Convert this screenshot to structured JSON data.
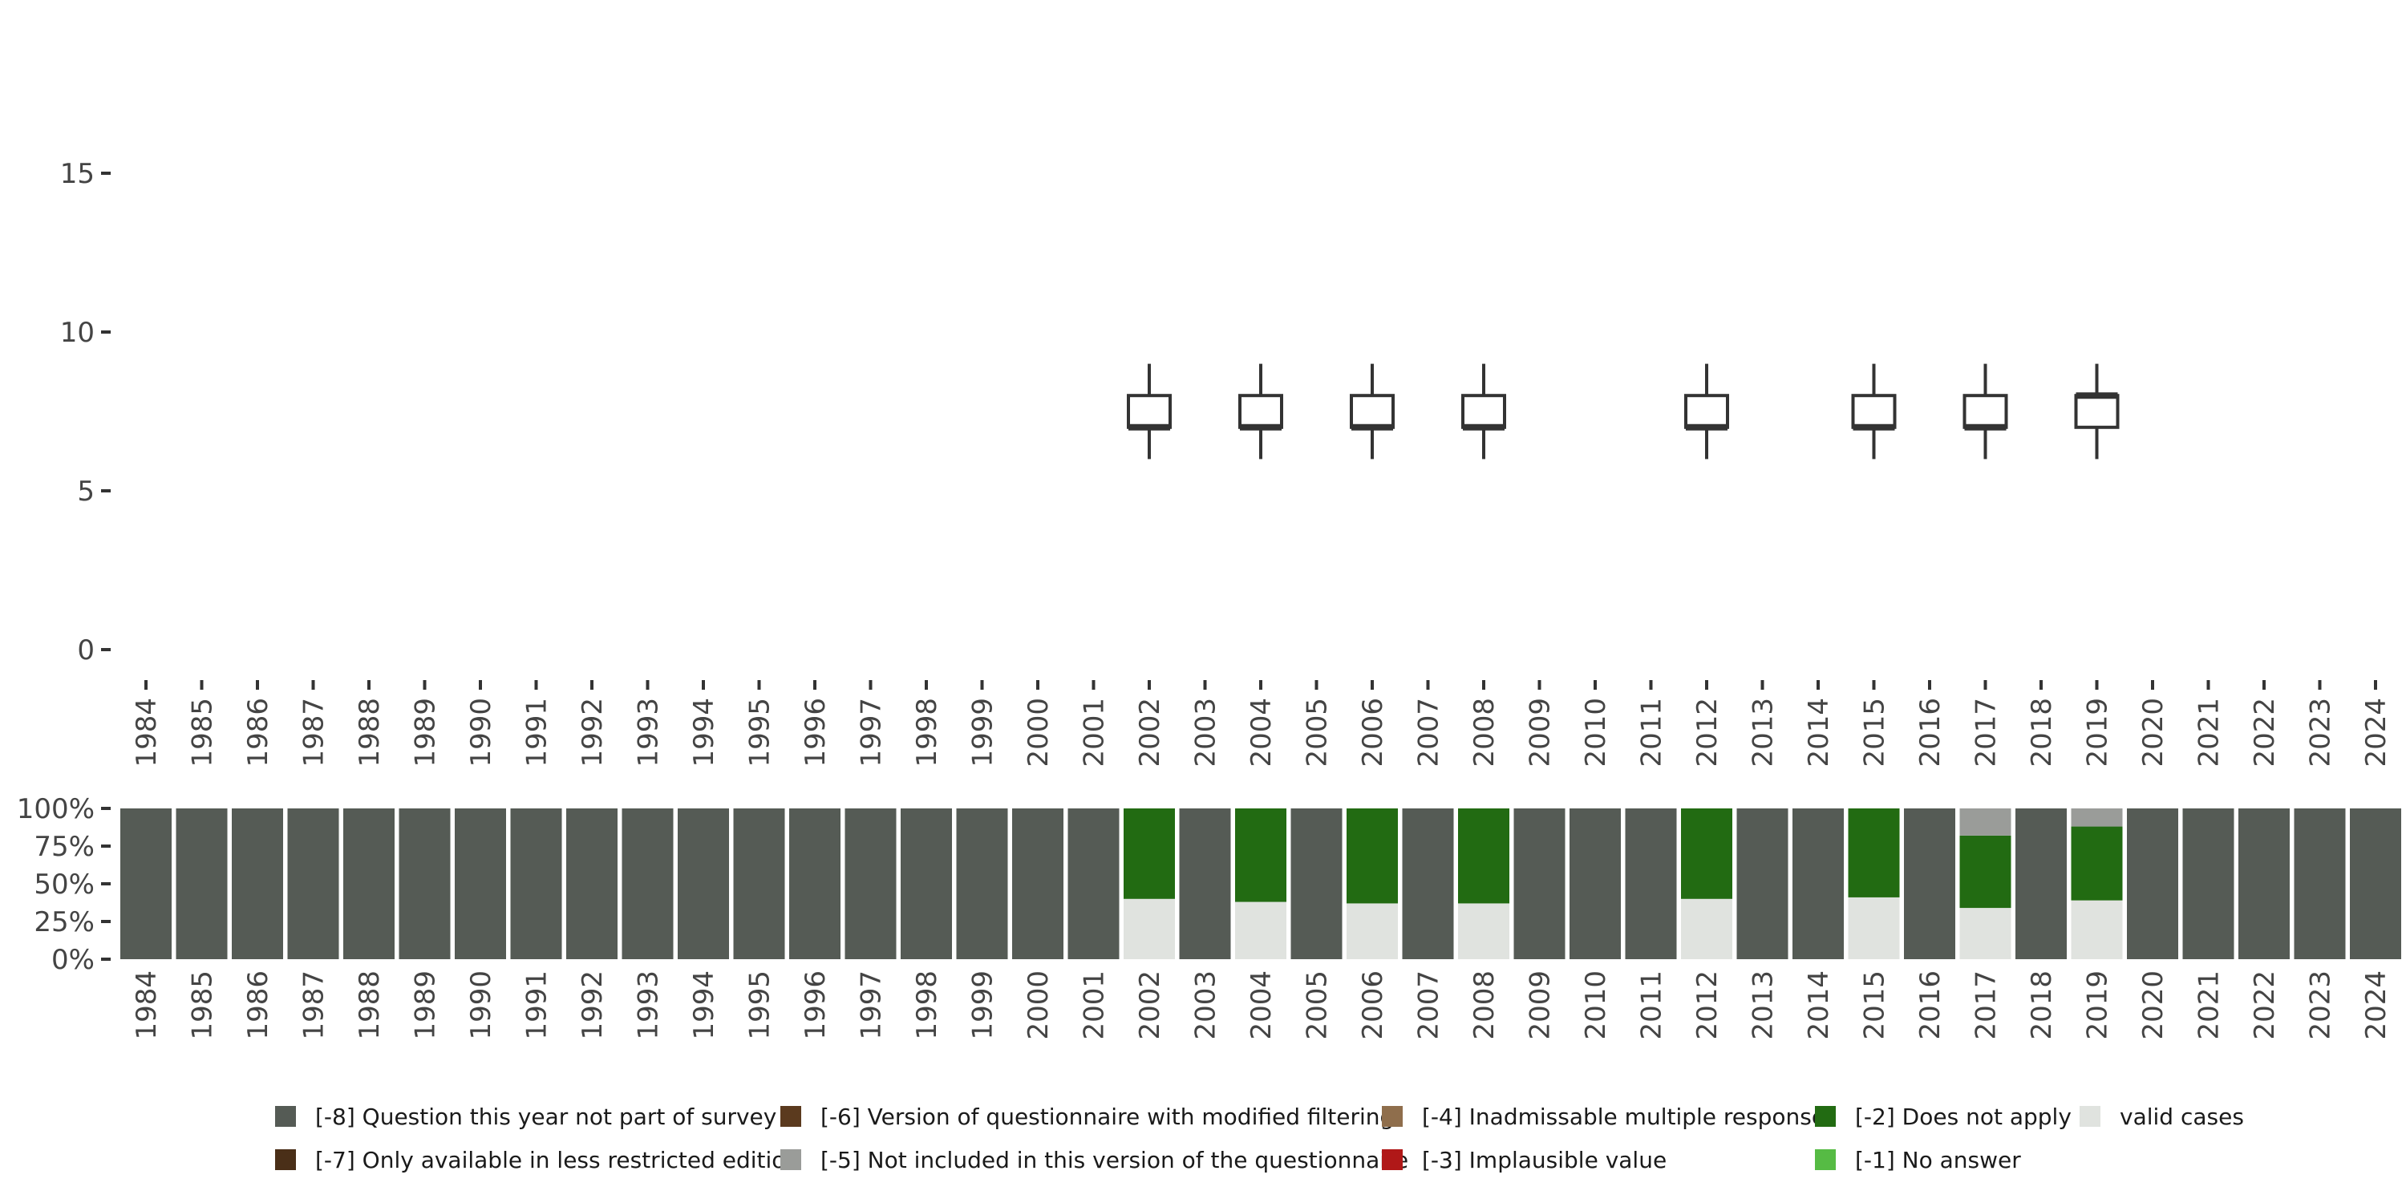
{
  "chart_data": [
    {
      "type": "boxplot",
      "title": "",
      "ylim": [
        0,
        19
      ],
      "yticks": [
        0,
        5,
        10,
        15
      ],
      "categories": [
        "1984",
        "1985",
        "1986",
        "1987",
        "1988",
        "1989",
        "1990",
        "1991",
        "1992",
        "1993",
        "1994",
        "1995",
        "1996",
        "1997",
        "1998",
        "1999",
        "2000",
        "2001",
        "2002",
        "2003",
        "2004",
        "2005",
        "2006",
        "2007",
        "2008",
        "2009",
        "2010",
        "2011",
        "2012",
        "2013",
        "2014",
        "2015",
        "2016",
        "2017",
        "2018",
        "2019",
        "2020",
        "2021",
        "2022",
        "2023",
        "2024"
      ],
      "boxes": [
        {
          "year": "2002",
          "whisker_low": 6,
          "q1": 7,
          "median": 7,
          "q3": 8,
          "whisker_high": 9
        },
        {
          "year": "2004",
          "whisker_low": 6,
          "q1": 7,
          "median": 7,
          "q3": 8,
          "whisker_high": 9
        },
        {
          "year": "2006",
          "whisker_low": 6,
          "q1": 7,
          "median": 7,
          "q3": 8,
          "whisker_high": 9
        },
        {
          "year": "2008",
          "whisker_low": 6,
          "q1": 7,
          "median": 7,
          "q3": 8,
          "whisker_high": 9
        },
        {
          "year": "2012",
          "whisker_low": 6,
          "q1": 7,
          "median": 7,
          "q3": 8,
          "whisker_high": 9
        },
        {
          "year": "2015",
          "whisker_low": 6,
          "q1": 7,
          "median": 7,
          "q3": 8,
          "whisker_high": 9
        },
        {
          "year": "2017",
          "whisker_low": 6,
          "q1": 7,
          "median": 7,
          "q3": 8,
          "whisker_high": 9
        },
        {
          "year": "2019",
          "whisker_low": 6,
          "q1": 7,
          "median": 8,
          "q3": 8,
          "whisker_high": 9
        }
      ]
    },
    {
      "type": "stacked_bar_percent",
      "yticks": [
        "0%",
        "25%",
        "50%",
        "75%",
        "100%"
      ],
      "categories": [
        "1984",
        "1985",
        "1986",
        "1987",
        "1988",
        "1989",
        "1990",
        "1991",
        "1992",
        "1993",
        "1994",
        "1995",
        "1996",
        "1997",
        "1998",
        "1999",
        "2000",
        "2001",
        "2002",
        "2003",
        "2004",
        "2005",
        "2006",
        "2007",
        "2008",
        "2009",
        "2010",
        "2011",
        "2012",
        "2013",
        "2014",
        "2015",
        "2016",
        "2017",
        "2018",
        "2019",
        "2020",
        "2021",
        "2022",
        "2023",
        "2024"
      ],
      "surveyed": {
        "2002": {
          "valid": 40,
          "dna": 60,
          "nv": 0
        },
        "2004": {
          "valid": 38,
          "dna": 62,
          "nv": 0
        },
        "2006": {
          "valid": 37,
          "dna": 63,
          "nv": 0
        },
        "2008": {
          "valid": 37,
          "dna": 63,
          "nv": 0
        },
        "2012": {
          "valid": 40,
          "dna": 60,
          "nv": 0
        },
        "2015": {
          "valid": 41,
          "dna": 59,
          "nv": 0
        },
        "2017": {
          "valid": 34,
          "dna": 48,
          "nv": 18
        },
        "2019": {
          "valid": 39,
          "dna": 49,
          "nv": 12
        }
      },
      "legend": [
        {
          "code": "-8",
          "label": "[-8] Question this year not part of survey",
          "color": "#555b55"
        },
        {
          "code": "-7",
          "label": "[-7] Only available in less restricted edition",
          "color": "#4a2f18"
        },
        {
          "code": "-6",
          "label": "[-6] Version of questionnaire with modified filtering",
          "color": "#5b3a1e"
        },
        {
          "code": "-5",
          "label": "[-5] Not included in this version of the questionnaire",
          "color": "#9a9c99"
        },
        {
          "code": "-4",
          "label": "[-4] Inadmissable multiple response",
          "color": "#8f6e4c"
        },
        {
          "code": "-3",
          "label": "[-3] Implausible value",
          "color": "#b01818"
        },
        {
          "code": "-2",
          "label": "[-2] Does not apply",
          "color": "#226b12"
        },
        {
          "code": "-1",
          "label": "[-1] No answer",
          "color": "#56bb44"
        },
        {
          "code": "valid",
          "label": "valid cases",
          "color": "#e0e3df"
        }
      ]
    }
  ]
}
